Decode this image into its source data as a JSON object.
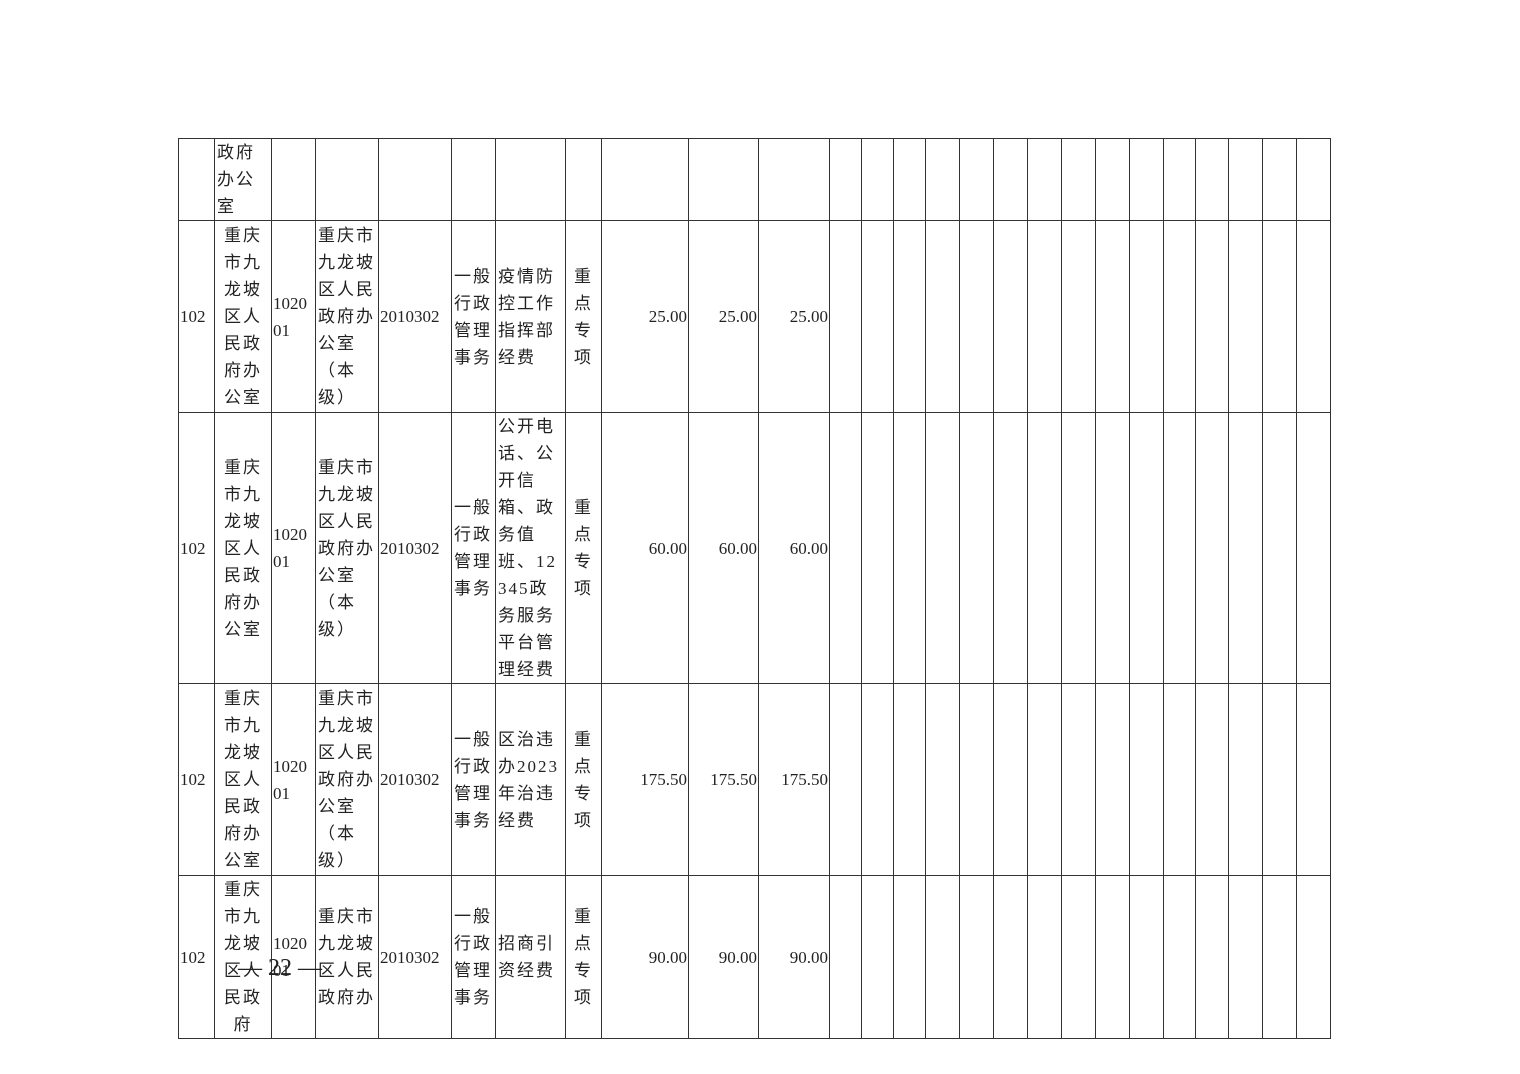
{
  "table": {
    "first_row_text": "政府办公室",
    "rows": [
      [
        "102",
        "重庆市九龙坡区人民政府办公室",
        "102001",
        "重庆市九龙坡区人民政府办公室（本级）",
        "2010302",
        "一般行政管理事务",
        "疫情防控工作指挥部经费",
        "重点专项",
        "25.00",
        "25.00",
        "25.00"
      ],
      [
        "102",
        "重庆市九龙坡区人民政府办公室",
        "102001",
        "重庆市九龙坡区人民政府办公室（本级）",
        "2010302",
        "一般行政管理事务",
        "公开电话、公开信箱、政务值班、12345政务服务平台管理经费",
        "重点专项",
        "60.00",
        "60.00",
        "60.00"
      ],
      [
        "102",
        "重庆市九龙坡区人民政府办公室",
        "102001",
        "重庆市九龙坡区人民政府办公室（本级）",
        "2010302",
        "一般行政管理事务",
        "区治违办2023年治违经费",
        "重点专项",
        "175.50",
        "175.50",
        "175.50"
      ],
      [
        "102",
        "重庆市九龙坡区人民政府",
        "102001",
        "重庆市九龙坡区人民政府办",
        "2010302",
        "一般行政管理事务",
        "招商引资经费",
        "重点专项",
        "90.00",
        "90.00",
        "90.00"
      ]
    ]
  },
  "footer": {
    "page_number": "— 22 —"
  }
}
